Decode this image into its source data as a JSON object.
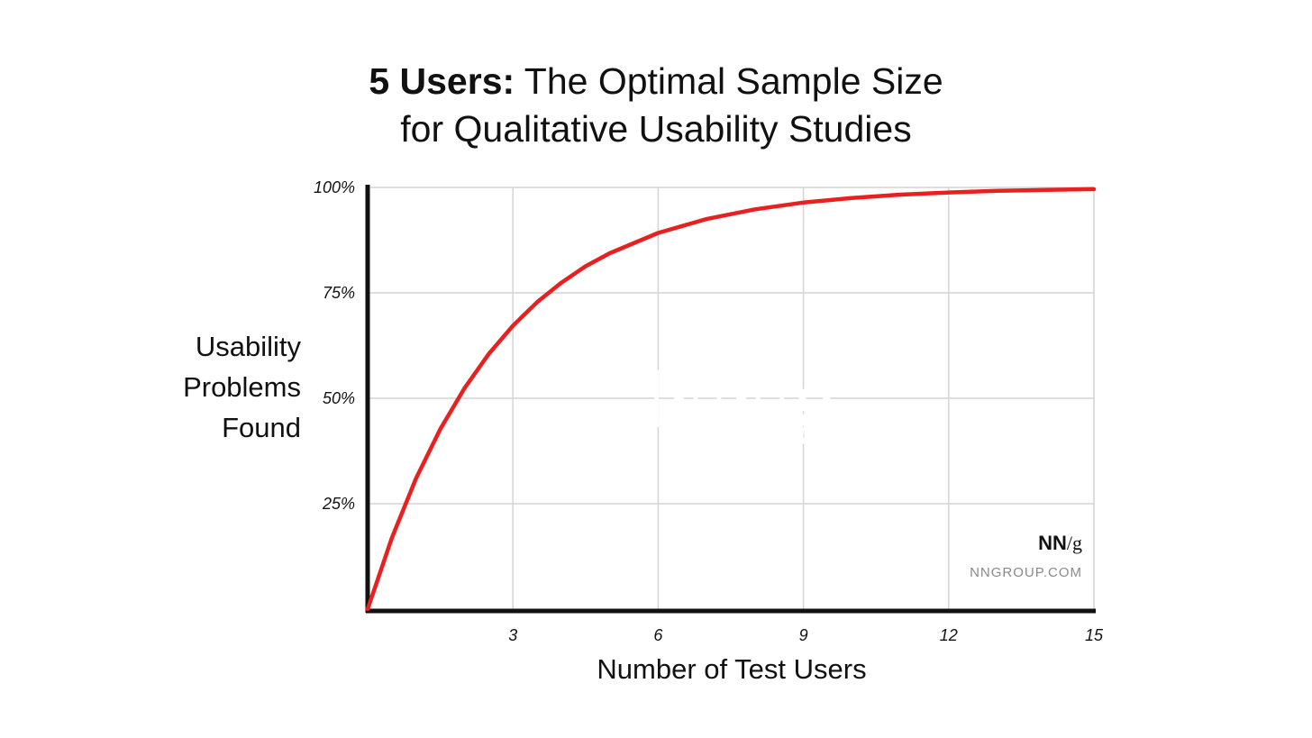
{
  "chart_data": {
    "type": "line",
    "title_bold": "5 Users:",
    "title_rest": " The Optimal Sample Size",
    "title_line2": "for Qualitative Usability Studies",
    "xlabel": "Number of Test Users",
    "ylabel_lines": [
      "Usability",
      "Problems",
      "Found"
    ],
    "xlim": [
      0,
      15
    ],
    "ylim": [
      0,
      100
    ],
    "x_ticks": [
      3,
      6,
      9,
      12,
      15
    ],
    "x_tick_labels": [
      "3",
      "6",
      "9",
      "12",
      "15"
    ],
    "y_ticks": [
      25,
      50,
      75,
      100
    ],
    "y_tick_labels": [
      "25%",
      "50%",
      "75%",
      "100%"
    ],
    "grid": true,
    "series": [
      {
        "color": "#e8201f",
        "x": [
          0,
          0.5,
          1,
          1.5,
          2,
          2.5,
          3,
          3.5,
          4,
          4.5,
          5,
          6,
          7,
          8,
          9,
          10,
          11,
          12,
          13,
          14,
          15
        ],
        "y": [
          0,
          16.9,
          31.0,
          42.7,
          52.4,
          60.5,
          67.2,
          72.8,
          77.4,
          81.3,
          84.4,
          89.2,
          92.5,
          94.8,
          96.4,
          97.5,
          98.3,
          98.8,
          99.2,
          99.4,
          99.6
        ]
      }
    ]
  },
  "watermark": "NN/g",
  "brand": {
    "logo_bold": "NN",
    "logo_rest": "/g",
    "url": "NNGROUP.COM"
  }
}
